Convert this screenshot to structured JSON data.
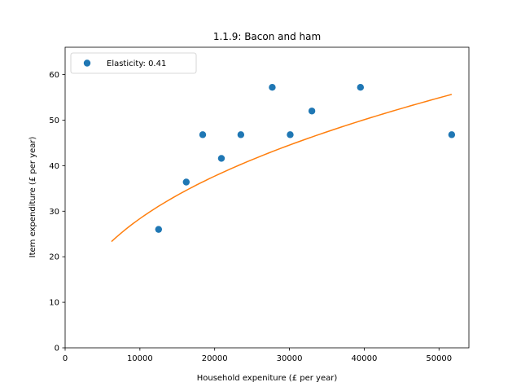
{
  "chart_data": {
    "type": "scatter",
    "title": "1.1.9: Bacon and ham",
    "xlabel": "Household expeniture (£ per year)",
    "ylabel": "Item expenditure (£ per year)",
    "xlim": [
      0,
      54000
    ],
    "ylim": [
      0,
      66
    ],
    "xticks": [
      0,
      10000,
      20000,
      30000,
      40000,
      50000
    ],
    "yticks": [
      0,
      10,
      20,
      30,
      40,
      50,
      60
    ],
    "grid": false,
    "legend_position": "top-left",
    "series": [
      {
        "name": "Elasticity: 0.41",
        "kind": "scatter",
        "color": "#1f77b4",
        "points": [
          {
            "x": 12500,
            "y": 26.0
          },
          {
            "x": 16200,
            "y": 36.4
          },
          {
            "x": 18400,
            "y": 46.8
          },
          {
            "x": 20900,
            "y": 41.6
          },
          {
            "x": 23500,
            "y": 46.8
          },
          {
            "x": 27700,
            "y": 57.2
          },
          {
            "x": 30100,
            "y": 46.8
          },
          {
            "x": 33000,
            "y": 52.0
          },
          {
            "x": 39500,
            "y": 57.2
          },
          {
            "x": 51700,
            "y": 46.8
          }
        ]
      },
      {
        "kind": "line",
        "color": "#ff7f0e",
        "curve": {
          "model": "power",
          "coefficient": 0.65,
          "exponent": 0.41,
          "x_range": [
            6200,
            51700
          ]
        }
      }
    ]
  }
}
